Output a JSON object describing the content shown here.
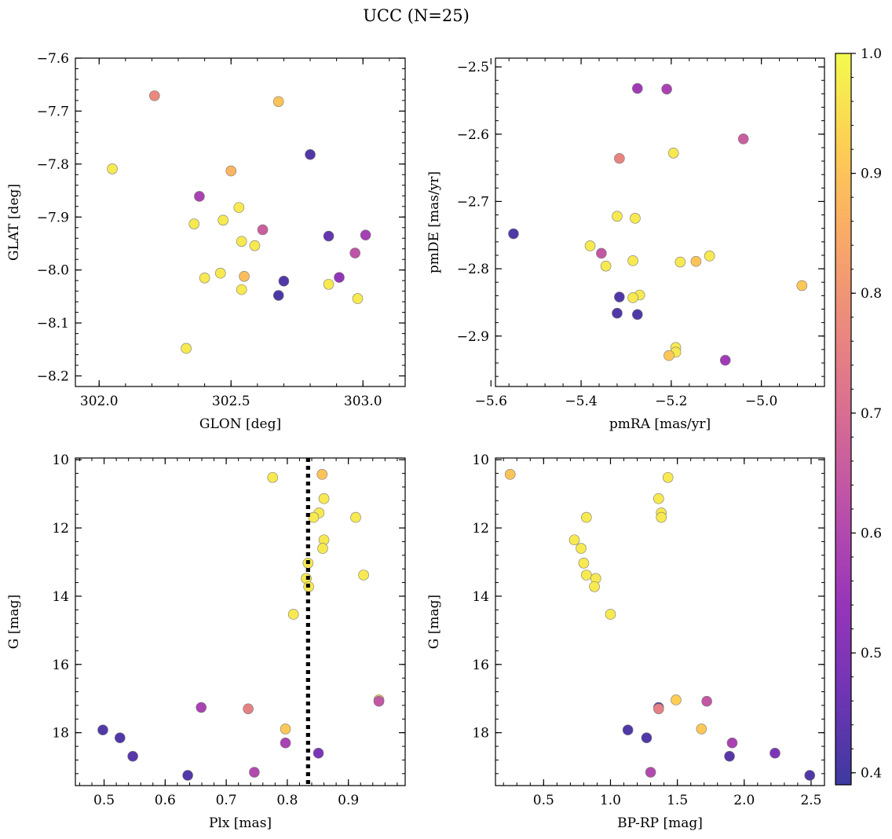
{
  "figure": {
    "title": "UCC (N=25)"
  },
  "colorbar": {
    "range": [
      0.39,
      1.0
    ],
    "ticks": [
      0.4,
      0.5,
      0.6,
      0.7,
      0.8,
      0.9,
      1.0
    ],
    "tick_labels": [
      "0.4",
      "0.5",
      "0.6",
      "0.7",
      "0.8",
      "0.9",
      "1.0"
    ],
    "colormap": "plasma"
  },
  "chart_data": [
    {
      "type": "scatter",
      "panel": "top-left",
      "xlabel": "GLON [deg]",
      "ylabel": "GLAT [deg]",
      "xlim": [
        301.91,
        303.16
      ],
      "ylim": [
        -8.22,
        -7.6
      ],
      "xticks": [
        302.0,
        302.5,
        303.0
      ],
      "xtick_labels": [
        "302.0",
        "302.5",
        "303.0"
      ],
      "yticks": [
        -7.6,
        -7.7,
        -7.8,
        -7.9,
        -8.0,
        -8.1,
        -8.2
      ],
      "ytick_labels": [
        "−7.6",
        "−7.7",
        "−7.8",
        "−7.9",
        "−8.0",
        "−8.1",
        "−8.2"
      ],
      "points": [
        {
          "x": 302.05,
          "y": -7.809,
          "c": 0.97
        },
        {
          "x": 302.21,
          "y": -7.671,
          "c": 0.77
        },
        {
          "x": 302.68,
          "y": -7.682,
          "c": 0.9
        },
        {
          "x": 302.8,
          "y": -7.782,
          "c": 0.42
        },
        {
          "x": 302.5,
          "y": -7.813,
          "c": 0.87
        },
        {
          "x": 302.38,
          "y": -7.861,
          "c": 0.58
        },
        {
          "x": 302.53,
          "y": -7.882,
          "c": 0.97
        },
        {
          "x": 302.36,
          "y": -7.913,
          "c": 0.97
        },
        {
          "x": 302.47,
          "y": -7.906,
          "c": 0.97
        },
        {
          "x": 302.62,
          "y": -7.924,
          "c": 0.66
        },
        {
          "x": 302.54,
          "y": -7.946,
          "c": 0.97
        },
        {
          "x": 302.59,
          "y": -7.954,
          "c": 0.97
        },
        {
          "x": 302.87,
          "y": -7.936,
          "c": 0.45
        },
        {
          "x": 303.01,
          "y": -7.934,
          "c": 0.57
        },
        {
          "x": 302.97,
          "y": -7.968,
          "c": 0.63
        },
        {
          "x": 302.4,
          "y": -8.015,
          "c": 0.97
        },
        {
          "x": 302.46,
          "y": -8.006,
          "c": 0.97
        },
        {
          "x": 302.55,
          "y": -8.012,
          "c": 0.89
        },
        {
          "x": 302.7,
          "y": -8.021,
          "c": 0.42
        },
        {
          "x": 302.91,
          "y": -8.014,
          "c": 0.53
        },
        {
          "x": 302.54,
          "y": -8.037,
          "c": 0.97
        },
        {
          "x": 302.68,
          "y": -8.048,
          "c": 0.41
        },
        {
          "x": 302.87,
          "y": -8.027,
          "c": 0.97
        },
        {
          "x": 302.98,
          "y": -8.054,
          "c": 0.97
        },
        {
          "x": 302.33,
          "y": -8.148,
          "c": 0.97
        }
      ]
    },
    {
      "type": "scatter",
      "panel": "top-right",
      "xlabel": "pmRA [mas/yr]",
      "ylabel": "pmDE [mas/yr]",
      "xlim": [
        -5.59,
        -4.86
      ],
      "ylim": [
        -2.975,
        -2.487
      ],
      "xticks": [
        -5.6,
        -5.4,
        -5.2,
        -5.0
      ],
      "xtick_labels": [
        "−5.6",
        "−5.4",
        "−5.2",
        "−5.0"
      ],
      "yticks": [
        -2.5,
        -2.6,
        -2.7,
        -2.8,
        -2.9
      ],
      "ytick_labels": [
        "−2.5",
        "−2.6",
        "−2.7",
        "−2.8",
        "−2.9"
      ],
      "points": [
        {
          "x": -5.275,
          "y": -2.532,
          "c": 0.56
        },
        {
          "x": -5.21,
          "y": -2.533,
          "c": 0.58
        },
        {
          "x": -5.04,
          "y": -2.607,
          "c": 0.66
        },
        {
          "x": -5.315,
          "y": -2.636,
          "c": 0.76
        },
        {
          "x": -5.195,
          "y": -2.628,
          "c": 0.97
        },
        {
          "x": -5.32,
          "y": -2.722,
          "c": 0.97
        },
        {
          "x": -5.28,
          "y": -2.725,
          "c": 0.97
        },
        {
          "x": -5.55,
          "y": -2.748,
          "c": 0.42
        },
        {
          "x": -5.38,
          "y": -2.766,
          "c": 0.97
        },
        {
          "x": -5.355,
          "y": -2.777,
          "c": 0.64
        },
        {
          "x": -5.115,
          "y": -2.781,
          "c": 0.97
        },
        {
          "x": -5.285,
          "y": -2.788,
          "c": 0.97
        },
        {
          "x": -5.18,
          "y": -2.79,
          "c": 0.97
        },
        {
          "x": -5.145,
          "y": -2.789,
          "c": 0.9
        },
        {
          "x": -5.345,
          "y": -2.796,
          "c": 0.97
        },
        {
          "x": -4.91,
          "y": -2.825,
          "c": 0.91
        },
        {
          "x": -5.315,
          "y": -2.842,
          "c": 0.42
        },
        {
          "x": -5.27,
          "y": -2.839,
          "c": 0.97
        },
        {
          "x": -5.285,
          "y": -2.843,
          "c": 0.97
        },
        {
          "x": -5.32,
          "y": -2.866,
          "c": 0.42
        },
        {
          "x": -5.275,
          "y": -2.868,
          "c": 0.42
        },
        {
          "x": -5.19,
          "y": -2.917,
          "c": 0.97
        },
        {
          "x": -5.19,
          "y": -2.924,
          "c": 0.97
        },
        {
          "x": -5.205,
          "y": -2.929,
          "c": 0.91
        },
        {
          "x": -5.08,
          "y": -2.936,
          "c": 0.56
        }
      ]
    },
    {
      "type": "scatter",
      "panel": "bottom-left",
      "xlabel": "Plx [mas]",
      "ylabel": "G [mag]",
      "xlim": [
        0.453,
        0.993
      ],
      "ylim": [
        19.55,
        9.95
      ],
      "xticks": [
        0.5,
        0.6,
        0.7,
        0.8,
        0.9
      ],
      "xtick_labels": [
        "0.5",
        "0.6",
        "0.7",
        "0.8",
        "0.9"
      ],
      "yticks": [
        10,
        12,
        14,
        16,
        18
      ],
      "ytick_labels": [
        "10",
        "12",
        "14",
        "16",
        "18"
      ],
      "vline": {
        "x": 0.834,
        "style": "dotted",
        "color": "#000000"
      },
      "points": [
        {
          "x": 0.776,
          "y": 10.52,
          "c": 0.97
        },
        {
          "x": 0.857,
          "y": 10.43,
          "c": 0.9
        },
        {
          "x": 0.86,
          "y": 11.14,
          "c": 0.97
        },
        {
          "x": 0.852,
          "y": 11.56,
          "c": 0.97
        },
        {
          "x": 0.843,
          "y": 11.69,
          "c": 0.97
        },
        {
          "x": 0.912,
          "y": 11.69,
          "c": 0.97
        },
        {
          "x": 0.86,
          "y": 12.35,
          "c": 0.97
        },
        {
          "x": 0.858,
          "y": 12.6,
          "c": 0.97
        },
        {
          "x": 0.834,
          "y": 13.03,
          "c": 0.97
        },
        {
          "x": 0.831,
          "y": 13.48,
          "c": 0.97
        },
        {
          "x": 0.925,
          "y": 13.38,
          "c": 0.97
        },
        {
          "x": 0.835,
          "y": 13.72,
          "c": 0.97
        },
        {
          "x": 0.81,
          "y": 14.53,
          "c": 0.97
        },
        {
          "x": 0.95,
          "y": 17.04,
          "c": 0.92
        },
        {
          "x": 0.95,
          "y": 17.08,
          "c": 0.64
        },
        {
          "x": 0.659,
          "y": 17.26,
          "c": 0.58
        },
        {
          "x": 0.736,
          "y": 17.3,
          "c": 0.75
        },
        {
          "x": 0.797,
          "y": 17.89,
          "c": 0.91
        },
        {
          "x": 0.498,
          "y": 17.92,
          "c": 0.42
        },
        {
          "x": 0.526,
          "y": 18.15,
          "c": 0.42
        },
        {
          "x": 0.797,
          "y": 18.3,
          "c": 0.58
        },
        {
          "x": 0.851,
          "y": 18.6,
          "c": 0.49
        },
        {
          "x": 0.547,
          "y": 18.69,
          "c": 0.43
        },
        {
          "x": 0.746,
          "y": 19.16,
          "c": 0.6
        },
        {
          "x": 0.637,
          "y": 19.25,
          "c": 0.42
        }
      ]
    },
    {
      "type": "scatter",
      "panel": "bottom-right",
      "xlabel": "BP-RP [mag]",
      "ylabel": "G [mag]",
      "xlim": [
        0.14,
        2.6
      ],
      "ylim": [
        19.55,
        9.95
      ],
      "xticks": [
        0.5,
        1.0,
        1.5,
        2.0,
        2.5
      ],
      "xtick_labels": [
        "0.5",
        "1.0",
        "1.5",
        "2.0",
        "2.5"
      ],
      "yticks": [
        10,
        12,
        14,
        16,
        18
      ],
      "ytick_labels": [
        "10",
        "12",
        "14",
        "16",
        "18"
      ],
      "points": [
        {
          "x": 0.25,
          "y": 10.43,
          "c": 0.9
        },
        {
          "x": 1.43,
          "y": 10.52,
          "c": 0.97
        },
        {
          "x": 1.36,
          "y": 11.14,
          "c": 0.97
        },
        {
          "x": 1.38,
          "y": 11.56,
          "c": 0.97
        },
        {
          "x": 1.38,
          "y": 11.69,
          "c": 0.97
        },
        {
          "x": 0.82,
          "y": 11.69,
          "c": 0.97
        },
        {
          "x": 0.73,
          "y": 12.35,
          "c": 0.97
        },
        {
          "x": 0.78,
          "y": 12.6,
          "c": 0.97
        },
        {
          "x": 0.8,
          "y": 13.03,
          "c": 0.97
        },
        {
          "x": 0.82,
          "y": 13.38,
          "c": 0.97
        },
        {
          "x": 0.89,
          "y": 13.48,
          "c": 0.97
        },
        {
          "x": 0.88,
          "y": 13.72,
          "c": 0.97
        },
        {
          "x": 1.0,
          "y": 14.53,
          "c": 0.97
        },
        {
          "x": 1.49,
          "y": 17.04,
          "c": 0.92
        },
        {
          "x": 1.72,
          "y": 17.08,
          "c": 0.64
        },
        {
          "x": 1.36,
          "y": 17.26,
          "c": 0.42
        },
        {
          "x": 1.36,
          "y": 17.3,
          "c": 0.75
        },
        {
          "x": 1.68,
          "y": 17.89,
          "c": 0.91
        },
        {
          "x": 1.13,
          "y": 17.92,
          "c": 0.42
        },
        {
          "x": 1.27,
          "y": 18.15,
          "c": 0.42
        },
        {
          "x": 1.91,
          "y": 18.3,
          "c": 0.58
        },
        {
          "x": 2.23,
          "y": 18.6,
          "c": 0.49
        },
        {
          "x": 1.89,
          "y": 18.69,
          "c": 0.43
        },
        {
          "x": 1.3,
          "y": 19.16,
          "c": 0.6
        },
        {
          "x": 2.49,
          "y": 19.25,
          "c": 0.42
        }
      ]
    }
  ]
}
